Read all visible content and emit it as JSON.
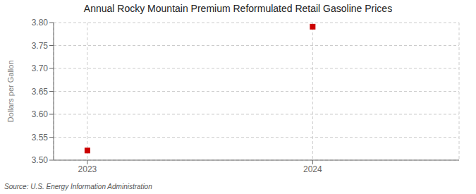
{
  "chart_data": {
    "type": "scatter",
    "title": "Annual Rocky Mountain Premium Reformulated Retail Gasoline Prices",
    "y_label": "Dollars per Gallon",
    "annotations": [
      "Source: U.S. Energy Information Administration"
    ],
    "x": [
      2023,
      2024
    ],
    "values": [
      3.521,
      3.791
    ],
    "color": "#cc0000",
    "marker": "square",
    "xlim": [
      2022.85,
      2024.65
    ],
    "xticks": [
      2023,
      2024
    ],
    "ylim": [
      3.5,
      3.8
    ],
    "yticks": [
      {
        "value": 3.5,
        "label": "3.50"
      },
      3.55,
      {
        "value": 3.6,
        "label": "3.60"
      },
      3.65,
      {
        "value": 3.7,
        "label": "3.70"
      },
      3.75,
      {
        "value": 3.8,
        "label": "3.80"
      }
    ],
    "grid": true
  }
}
